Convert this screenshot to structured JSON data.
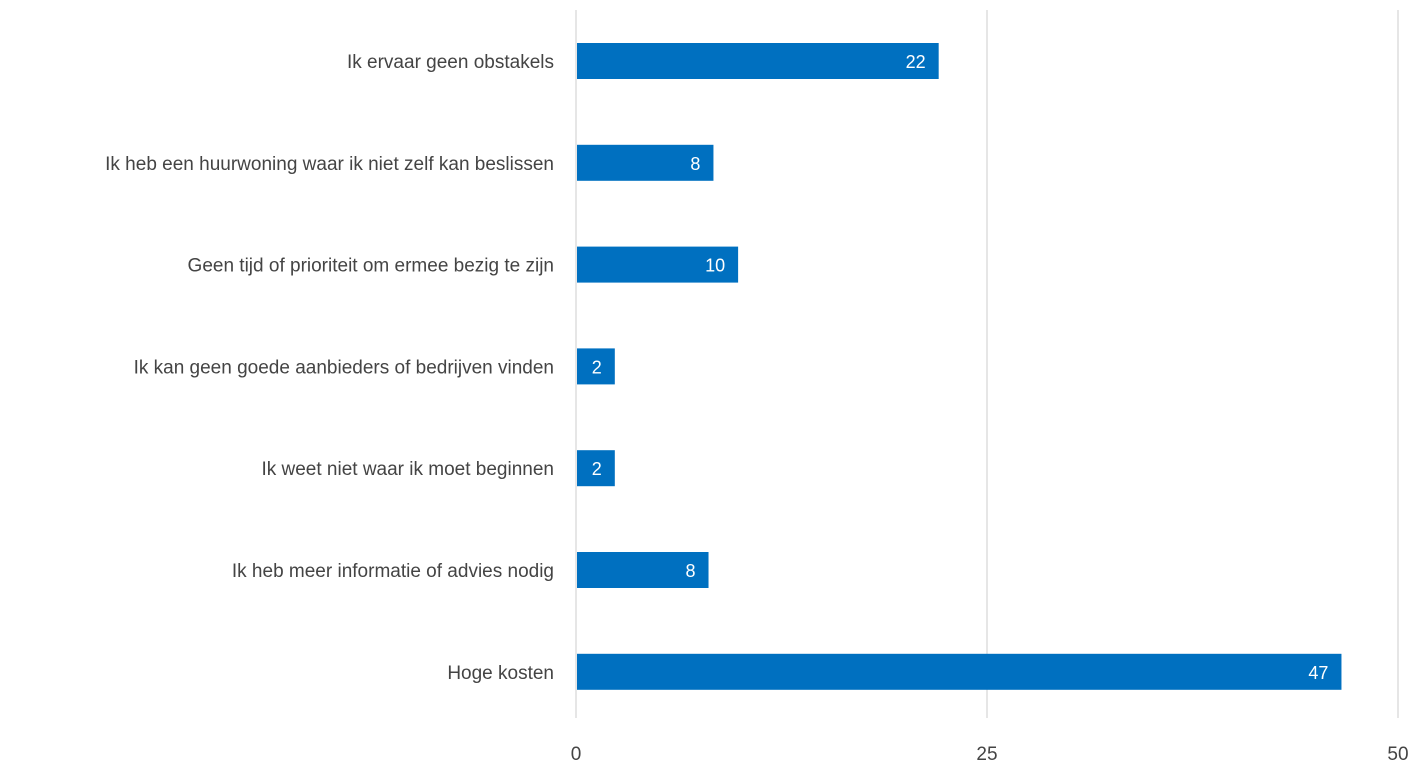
{
  "chart_data": {
    "type": "bar",
    "orientation": "horizontal",
    "title": "",
    "xlabel": "",
    "ylabel": "",
    "categories": [
      "Ik ervaar geen obstakels",
      "Ik heb een huurwoning waar ik niet zelf kan beslissen",
      "Geen tijd of prioriteit om ermee bezig te zijn",
      "Ik kan geen goede aanbieders of bedrijven vinden",
      "Ik weet niet waar ik moet beginnen",
      "Ik heb meer informatie of advies nodig",
      "Hoge kosten"
    ],
    "values": [
      22,
      8.3,
      9.8,
      2.3,
      2.3,
      8,
      46.5
    ],
    "data_labels": [
      "22",
      "8",
      "10",
      "2",
      "2",
      "8",
      "47"
    ],
    "xlim": [
      0,
      50
    ],
    "xticks": [
      "0",
      "25",
      "50"
    ],
    "grid": "vertical",
    "legend": "none",
    "bar_color": "#0070C0",
    "gridline_color": "#D9D9D9",
    "text_color": "#444444",
    "data_label_color": "#FFFFFF"
  }
}
